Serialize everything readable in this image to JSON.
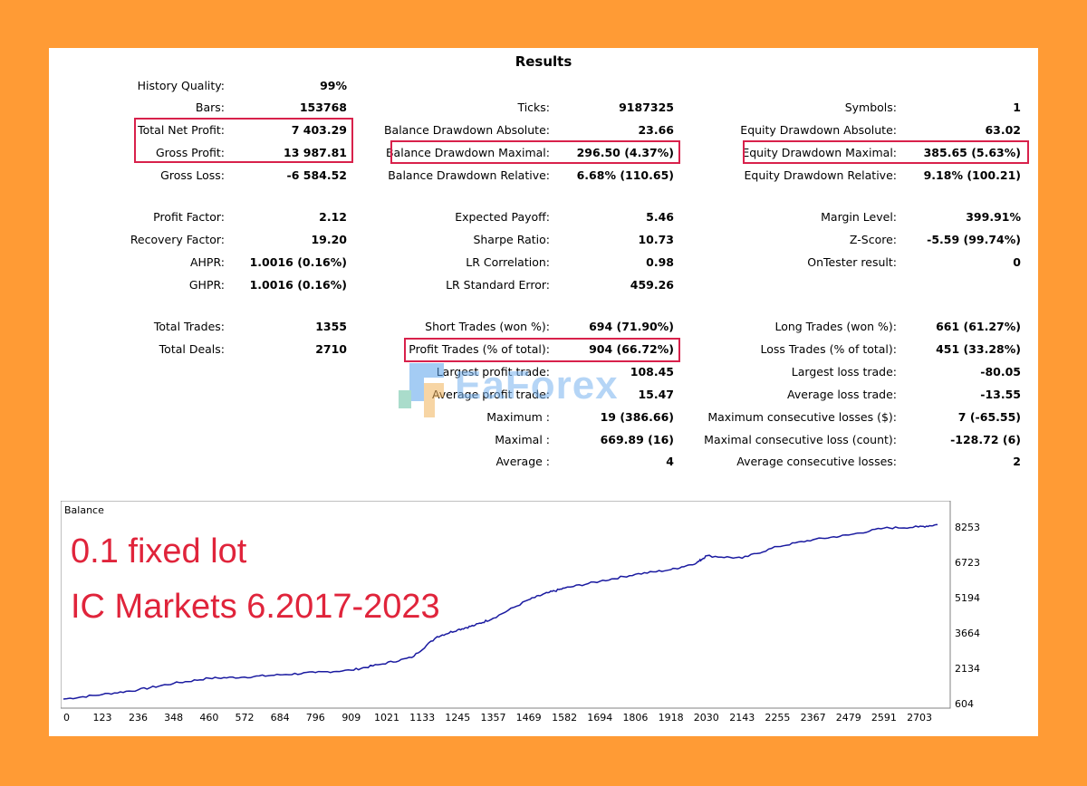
{
  "title": "Results",
  "stats": {
    "history_quality": {
      "label": "History Quality:",
      "value": "99%"
    },
    "bars": {
      "label": "Bars:",
      "value": "153768"
    },
    "total_net_profit": {
      "label": "Total Net Profit:",
      "value": "7 403.29"
    },
    "gross_profit": {
      "label": "Gross Profit:",
      "value": "13 987.81"
    },
    "gross_loss": {
      "label": "Gross Loss:",
      "value": "-6 584.52"
    },
    "profit_factor": {
      "label": "Profit Factor:",
      "value": "2.12"
    },
    "recovery_factor": {
      "label": "Recovery Factor:",
      "value": "19.20"
    },
    "ahpr": {
      "label": "AHPR:",
      "value": "1.0016 (0.16%)"
    },
    "ghpr": {
      "label": "GHPR:",
      "value": "1.0016 (0.16%)"
    },
    "total_trades": {
      "label": "Total Trades:",
      "value": "1355"
    },
    "total_deals": {
      "label": "Total Deals:",
      "value": "2710"
    },
    "ticks": {
      "label": "Ticks:",
      "value": "9187325"
    },
    "balance_dd_abs": {
      "label": "Balance Drawdown Absolute:",
      "value": "23.66"
    },
    "balance_dd_max": {
      "label": "Balance Drawdown Maximal:",
      "value": "296.50 (4.37%)"
    },
    "balance_dd_rel": {
      "label": "Balance Drawdown Relative:",
      "value": "6.68% (110.65)"
    },
    "expected_payoff": {
      "label": "Expected Payoff:",
      "value": "5.46"
    },
    "sharpe_ratio": {
      "label": "Sharpe Ratio:",
      "value": "10.73"
    },
    "lr_correlation": {
      "label": "LR Correlation:",
      "value": "0.98"
    },
    "lr_std_error": {
      "label": "LR Standard Error:",
      "value": "459.26"
    },
    "short_trades": {
      "label": "Short Trades (won %):",
      "value": "694 (71.90%)"
    },
    "profit_trades": {
      "label": "Profit Trades (% of total):",
      "value": "904 (66.72%)"
    },
    "largest_profit": {
      "label": "Largest profit trade:",
      "value": "108.45"
    },
    "average_profit": {
      "label": "Average profit trade:",
      "value": "15.47"
    },
    "maximum": {
      "label": "Maximum :",
      "value": "19 (386.66)"
    },
    "maximal": {
      "label": "Maximal :",
      "value": "669.89 (16)"
    },
    "average": {
      "label": "Average :",
      "value": "4"
    },
    "symbols": {
      "label": "Symbols:",
      "value": "1"
    },
    "equity_dd_abs": {
      "label": "Equity Drawdown Absolute:",
      "value": "63.02"
    },
    "equity_dd_max": {
      "label": "Equity Drawdown Maximal:",
      "value": "385.65 (5.63%)"
    },
    "equity_dd_rel": {
      "label": "Equity Drawdown Relative:",
      "value": "9.18% (100.21)"
    },
    "margin_level": {
      "label": "Margin Level:",
      "value": "399.91%"
    },
    "z_score": {
      "label": "Z-Score:",
      "value": "-5.59 (99.74%)"
    },
    "ontester": {
      "label": "OnTester result:",
      "value": "0"
    },
    "long_trades": {
      "label": "Long Trades (won %):",
      "value": "661 (61.27%)"
    },
    "loss_trades": {
      "label": "Loss Trades (% of total):",
      "value": "451 (33.28%)"
    },
    "largest_loss": {
      "label": "Largest loss trade:",
      "value": "-80.05"
    },
    "average_loss": {
      "label": "Average loss trade:",
      "value": "-13.55"
    },
    "max_consec_losses": {
      "label": "Maximum consecutive losses ($):",
      "value": "7 (-65.55)"
    },
    "maximal_consec_loss": {
      "label": "Maximal consecutive loss (count):",
      "value": "-128.72 (6)"
    },
    "avg_consec_losses": {
      "label": "Average consecutive losses:",
      "value": "2"
    }
  },
  "watermark": {
    "text": "EaForex"
  },
  "overlay": {
    "line1": "0.1 fixed lot",
    "line2": "IC Markets 6.2017-2023"
  },
  "chart_data": {
    "type": "line",
    "title": "Balance",
    "xlim": [
      0,
      2760
    ],
    "ylim": [
      604,
      8600
    ],
    "x_ticks": [
      0,
      123,
      236,
      348,
      460,
      572,
      684,
      796,
      909,
      1021,
      1133,
      1245,
      1357,
      1469,
      1582,
      1694,
      1806,
      1918,
      2030,
      2143,
      2255,
      2367,
      2479,
      2591,
      2703
    ],
    "y_ticks": [
      604,
      2134,
      3664,
      5194,
      6723,
      8253
    ],
    "series": [
      {
        "color": "#1a1aa0",
        "x": [
          0,
          123,
          236,
          348,
          460,
          572,
          684,
          796,
          909,
          1000,
          1100,
          1180,
          1245,
          1300,
          1357,
          1469,
          1530,
          1582,
          1694,
          1806,
          1918,
          2000,
          2030,
          2143,
          2255,
          2367,
          2479,
          2591,
          2700,
          2760
        ],
        "y": [
          800,
          1000,
          1200,
          1480,
          1700,
          1750,
          1850,
          1950,
          2050,
          2300,
          2600,
          3500,
          3800,
          4000,
          4300,
          5100,
          5400,
          5600,
          5900,
          6200,
          6400,
          6700,
          7000,
          6900,
          7400,
          7700,
          7900,
          8200,
          8250,
          8350
        ]
      }
    ]
  }
}
